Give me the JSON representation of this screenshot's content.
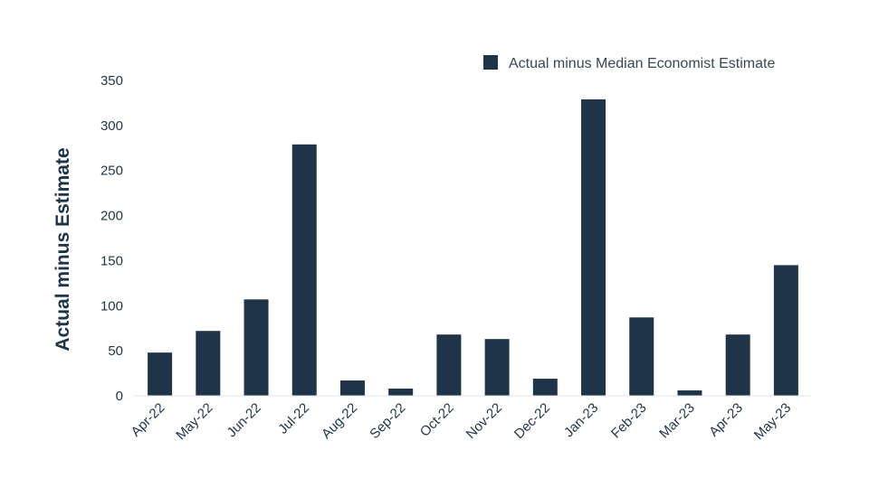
{
  "chart_data": {
    "type": "bar",
    "categories": [
      "Apr-22",
      "May-22",
      "Jun-22",
      "Jul-22",
      "Aug-22",
      "Sep-22",
      "Oct-22",
      "Nov-22",
      "Dec-22",
      "Jan-23",
      "Feb-23",
      "Mar-23",
      "Apr-23",
      "May-23"
    ],
    "series": [
      {
        "name": "Actual minus Median Economist Estimate",
        "values": [
          48,
          72,
          107,
          279,
          17,
          8,
          68,
          63,
          19,
          329,
          87,
          6,
          68,
          145
        ],
        "color": "#1f3449"
      }
    ],
    "title": "",
    "xlabel": "",
    "ylabel": "Actual minus Estimate",
    "ylim": [
      0,
      350
    ],
    "yticks": [
      0,
      50,
      100,
      150,
      200,
      250,
      300,
      350
    ],
    "grid": false,
    "legend_position": "top-right"
  }
}
